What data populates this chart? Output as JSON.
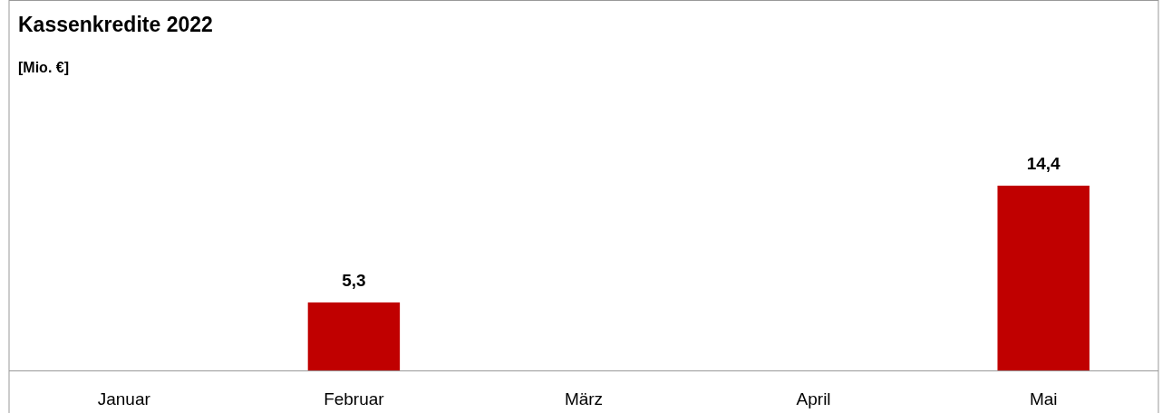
{
  "chart_data": {
    "type": "bar",
    "title": "Kassenkredite 2022",
    "subtitle": "[Mio. €]",
    "categories": [
      "Januar",
      "Februar",
      "März",
      "April",
      "Mai"
    ],
    "values": [
      null,
      5.3,
      null,
      null,
      14.4
    ],
    "value_labels": [
      null,
      "5,3",
      null,
      null,
      "14,4"
    ],
    "color": "#c00000"
  }
}
